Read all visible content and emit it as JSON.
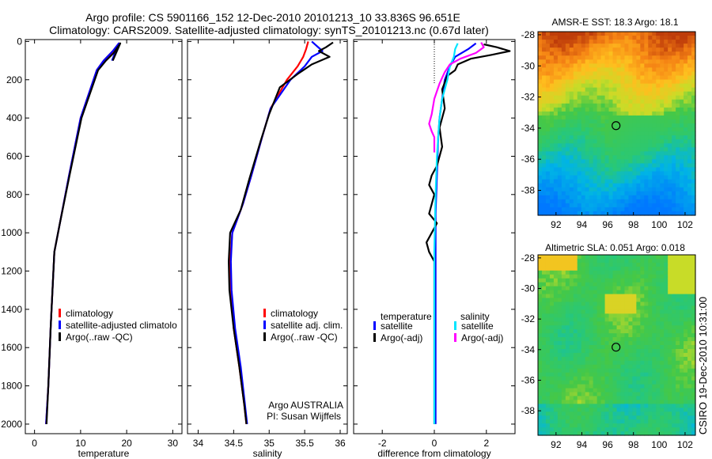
{
  "header": {
    "line1": "Argo profile: CS 5901166_152 12-Dec-2010 20101213_10 33.836S 96.651E",
    "line2": "Climatology: CARS2009. Satellite-adjusted climatology: synTS_20101213.nc (0.67d later)"
  },
  "colors": {
    "climatology": "#ff0000",
    "satellite": "#0000ff",
    "argo": "#000000",
    "sat_salinity": "#00e5ff",
    "argo_salinity": "#ff00ff"
  },
  "chart_data": [
    {
      "type": "line",
      "xlabel": "temperature",
      "xlim": [
        -2,
        32
      ],
      "xticks": [
        0,
        10,
        20,
        30
      ],
      "ylim": [
        2050,
        -10
      ],
      "yticks": [
        0,
        200,
        400,
        600,
        800,
        1000,
        1200,
        1400,
        1600,
        1800,
        2000
      ],
      "legend": [
        "climatology",
        "satellite-adjusted climatolo",
        "Argo(..raw -QC)"
      ],
      "series": [
        {
          "name": "climatology",
          "color": "#ff0000",
          "x": [
            15.2,
            17.0,
            18.3,
            17.0,
            15.0,
            13.5,
            10.0,
            7.5,
            5.5,
            4.3,
            3.5,
            3.0,
            2.5
          ],
          "y": [
            100,
            60,
            10,
            50,
            100,
            150,
            400,
            700,
            950,
            1100,
            1500,
            1800,
            2000
          ]
        },
        {
          "name": "satellite-adjusted climatology",
          "color": "#0000ff",
          "x": [
            16.8,
            18.3,
            17.0,
            15.0,
            13.5,
            10.0,
            7.5,
            5.5,
            4.3,
            3.5,
            3.0,
            2.5
          ],
          "y": [
            100,
            10,
            50,
            100,
            150,
            400,
            700,
            950,
            1100,
            1500,
            1800,
            2000
          ]
        },
        {
          "name": "Argo(..raw -QC)",
          "color": "#000000",
          "x": [
            17.0,
            18.6,
            17.2,
            15.5,
            13.8,
            10.2,
            7.6,
            5.5,
            4.3,
            3.5,
            3.0,
            2.6
          ],
          "y": [
            100,
            10,
            60,
            100,
            150,
            400,
            700,
            950,
            1100,
            1500,
            1800,
            2000
          ]
        }
      ]
    },
    {
      "type": "line",
      "xlabel": "salinity",
      "xlim": [
        33.85,
        36.1
      ],
      "xticks": [
        34,
        34.5,
        35,
        35.5,
        36
      ],
      "ylim": [
        2050,
        -10
      ],
      "legend": [
        "climatology",
        "satellite adj. clim.",
        "Argo(..raw -QC)"
      ],
      "annotations": [
        "Argo AUSTRALIA",
        "PI: Susan Wijffels"
      ],
      "series": [
        {
          "name": "climatology",
          "color": "#ff0000",
          "x": [
            35.55,
            35.52,
            35.48,
            35.4,
            35.25,
            35.02,
            34.9,
            34.75,
            34.63,
            34.48,
            34.45,
            34.46,
            34.5,
            34.58,
            34.65,
            34.68
          ],
          "y": [
            0,
            40,
            80,
            130,
            200,
            350,
            500,
            700,
            850,
            1000,
            1150,
            1300,
            1500,
            1700,
            1900,
            2000
          ]
        },
        {
          "name": "satellite adj. clim.",
          "color": "#0000ff",
          "x": [
            35.6,
            35.75,
            35.6,
            35.5,
            35.3,
            35.02,
            34.9,
            34.75,
            34.63,
            34.48,
            34.46,
            34.47,
            34.52,
            34.6,
            34.66,
            34.69
          ],
          "y": [
            0,
            50,
            80,
            130,
            200,
            350,
            500,
            700,
            850,
            1000,
            1150,
            1300,
            1500,
            1700,
            1900,
            2000
          ]
        },
        {
          "name": "Argo(..raw -QC)",
          "color": "#000000",
          "x": [
            35.9,
            35.8,
            35.7,
            35.85,
            35.6,
            35.4,
            35.15,
            35.0,
            34.88,
            34.72,
            34.6,
            34.45,
            34.43,
            34.44,
            34.5,
            34.58,
            34.65,
            34.68
          ],
          "y": [
            5,
            30,
            50,
            80,
            120,
            170,
            240,
            380,
            520,
            720,
            880,
            1000,
            1150,
            1300,
            1500,
            1700,
            1900,
            2000
          ]
        }
      ]
    },
    {
      "type": "line",
      "xlabel": "difference from climatology",
      "xlim": [
        -3.1,
        3.1
      ],
      "xticks": [
        -2,
        0,
        2
      ],
      "ylim": [
        2050,
        -10
      ],
      "legend_titles": [
        "temperature",
        "salinity"
      ],
      "legend": [
        "satellite",
        "Argo(-adj)",
        "satellite",
        "Argo(-adj)"
      ],
      "series": [
        {
          "name": "satellite",
          "group": "temperature",
          "color": "#0000ff",
          "x": [
            1.6,
            1.3,
            0.8,
            0.6,
            0.4,
            0.3,
            0.2,
            0.15,
            0.1,
            0.05,
            0.05,
            0.05
          ],
          "y": [
            10,
            40,
            80,
            130,
            200,
            300,
            400,
            500,
            700,
            900,
            1300,
            2000
          ]
        },
        {
          "name": "Argo(-adj)",
          "group": "temperature",
          "color": "#000000",
          "x": [
            1.9,
            2.4,
            2.9,
            2.2,
            1.4,
            0.9,
            0.8,
            0.5,
            0.3,
            0.4,
            0.2,
            0.3,
            0.1,
            -0.1,
            -0.2,
            0.0,
            -0.1,
            -0.2,
            0.1,
            -0.1,
            -0.3,
            -0.2,
            0.0,
            0.0,
            0.0,
            0.0
          ],
          "y": [
            15,
            30,
            50,
            70,
            90,
            120,
            150,
            180,
            250,
            350,
            450,
            550,
            650,
            700,
            750,
            800,
            850,
            900,
            950,
            1000,
            1050,
            1100,
            1150,
            1200,
            1500,
            2000
          ]
        },
        {
          "name": "satellite",
          "group": "salinity",
          "color": "#00e5ff",
          "x": [
            0.9,
            0.8,
            0.75,
            0.6,
            0.5,
            0.3,
            0.2,
            0.1,
            0.05,
            0.0,
            0.0,
            0.0
          ],
          "y": [
            10,
            40,
            80,
            130,
            200,
            300,
            400,
            600,
            800,
            1100,
            1500,
            2000
          ]
        },
        {
          "name": "Argo(-adj)",
          "group": "salinity",
          "color": "#ff00ff",
          "x": [
            1.8,
            1.9,
            1.6,
            1.0,
            0.6,
            0.4,
            0.2,
            0.0,
            -0.1,
            -0.2,
            -0.1,
            0.0,
            0.0,
            0.0
          ],
          "y": [
            5,
            30,
            60,
            90,
            120,
            160,
            220,
            300,
            380,
            430,
            470,
            500,
            520,
            580
          ]
        }
      ]
    },
    {
      "type": "heatmap",
      "title": "AMSR-E SST: 18.3 Argo: 18.1",
      "xticks": [
        92,
        94,
        96,
        98,
        100,
        102
      ],
      "yticks": [
        -30,
        -32,
        -34,
        -36,
        -38
      ],
      "extra_yticks": [
        -28
      ],
      "xlim": [
        90.6,
        102.8
      ],
      "ylim": [
        -39.6,
        -27.8
      ],
      "marker": {
        "lon": 96.65,
        "lat": -33.84
      }
    },
    {
      "type": "heatmap",
      "title": "Altimetric SLA: 0.051 Argo: 0.018",
      "xticks": [
        92,
        94,
        96,
        98,
        100,
        102
      ],
      "yticks": [
        -30,
        -32,
        -34,
        -36,
        -38
      ],
      "extra_yticks": [
        -28
      ],
      "xlim": [
        90.6,
        102.8
      ],
      "ylim": [
        -39.6,
        -27.8
      ],
      "marker": {
        "lon": 96.65,
        "lat": -33.84
      }
    }
  ],
  "footer": {
    "stamp": "CSIRO 19-Dec-2010 10:31:00"
  }
}
